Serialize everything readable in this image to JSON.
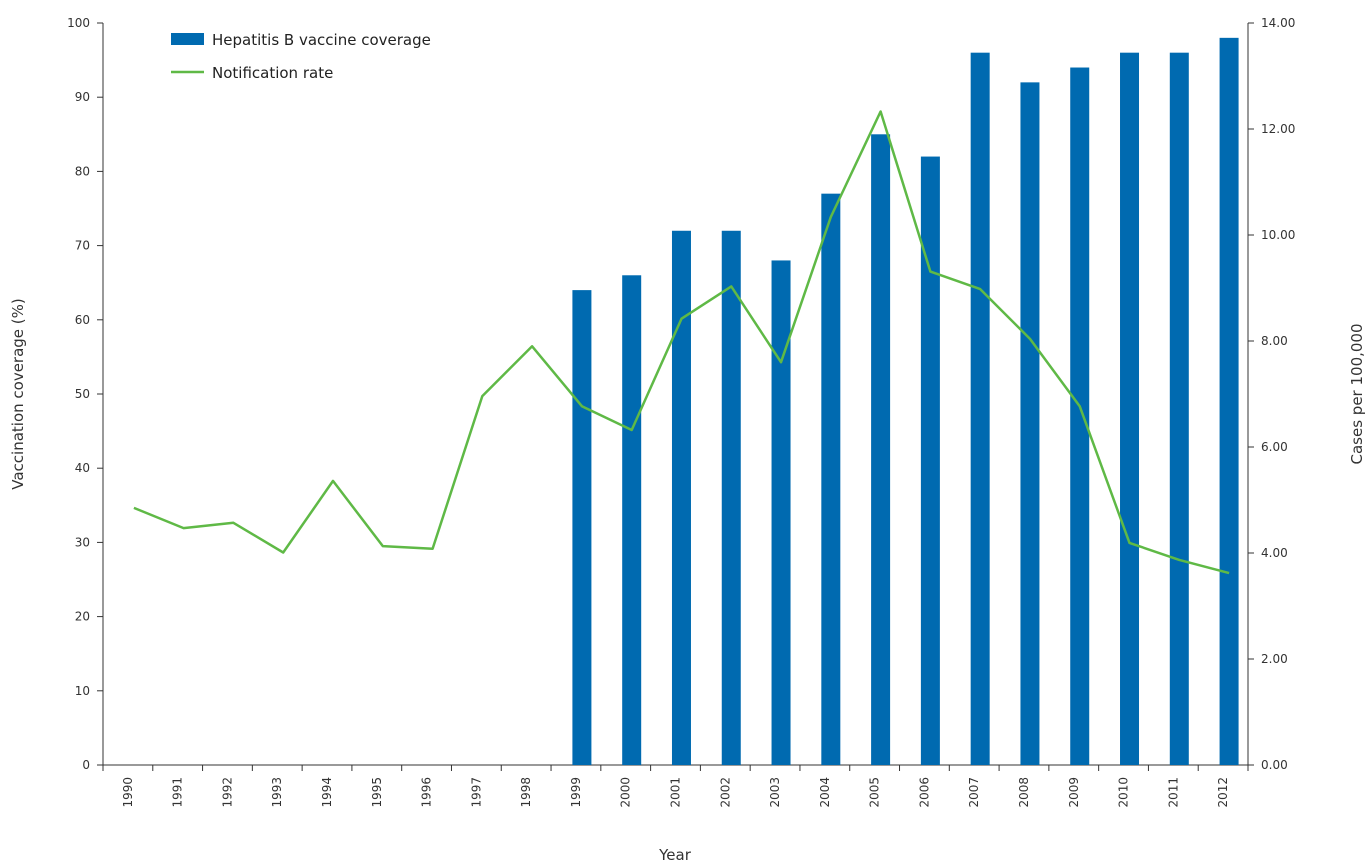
{
  "chart_data": {
    "type": "bar",
    "categories": [
      "1990",
      "1991",
      "1992",
      "1993",
      "1994",
      "1995",
      "1996",
      "1997",
      "1998",
      "1999",
      "2000",
      "2001",
      "2002",
      "2003",
      "2004",
      "2005",
      "2006",
      "2007",
      "2008",
      "2009",
      "2010",
      "2011",
      "2012"
    ],
    "series": [
      {
        "name": "Hepatitis B vaccine coverage",
        "type": "bar",
        "axis": "left",
        "color": "#006ab0",
        "values": [
          null,
          null,
          null,
          null,
          null,
          null,
          null,
          null,
          null,
          64,
          66,
          72,
          72,
          68,
          77,
          85,
          82,
          96,
          92,
          94,
          96,
          96,
          98
        ]
      },
      {
        "name": "Notification rate",
        "type": "line",
        "axis": "right",
        "color": "#5fb946",
        "values": [
          4.85,
          4.47,
          4.57,
          4.01,
          5.36,
          4.13,
          4.08,
          6.96,
          7.9,
          6.77,
          6.32,
          8.42,
          9.03,
          7.6,
          10.34,
          12.33,
          9.31,
          8.98,
          8.04,
          6.77,
          4.19,
          3.87,
          3.62
        ]
      }
    ],
    "xlabel": "Year",
    "ylabel": "Vaccination coverage (%)",
    "y2label": "Cases per 100,000",
    "ylim": [
      0,
      100
    ],
    "y2lim": [
      0,
      14
    ],
    "yticks": [
      "0",
      "10",
      "20",
      "30",
      "40",
      "50",
      "60",
      "70",
      "80",
      "90",
      "100"
    ],
    "y2ticks": [
      "0.00",
      "2.00",
      "4.00",
      "6.00",
      "8.00",
      "10.00",
      "12.00",
      "14.00"
    ],
    "grid": false,
    "legend_position": "top-left"
  }
}
